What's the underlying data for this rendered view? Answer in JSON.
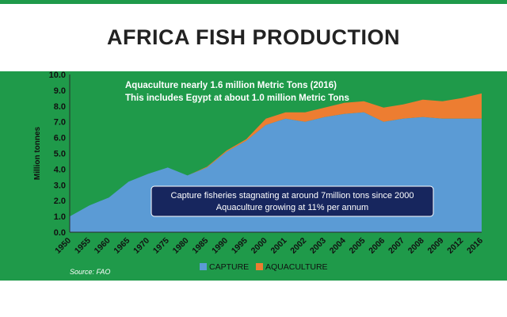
{
  "page": {
    "title": "AFRICA FISH PRODUCTION"
  },
  "colors": {
    "background_panel": "#1f9a4a",
    "capture": "#5b9bd5",
    "aquaculture": "#ed7d31",
    "note_box": "#17265e",
    "note_box_border": "#ffffff",
    "annotation_text": "#ffffff",
    "axis_text": "#111111"
  },
  "chart_data": {
    "type": "area",
    "stacked": true,
    "categories": [
      "1950",
      "1955",
      "1960",
      "1965",
      "1970",
      "1975",
      "1980",
      "1985",
      "1990",
      "1995",
      "2000",
      "2001",
      "2002",
      "2003",
      "2004",
      "2005",
      "2006",
      "2007",
      "2008",
      "2009",
      "2012",
      "2016"
    ],
    "series": [
      {
        "name": "CAPTURE",
        "color": "#5b9bd5",
        "values": [
          1.0,
          1.7,
          2.2,
          3.2,
          3.7,
          4.1,
          3.6,
          4.1,
          5.1,
          5.8,
          6.8,
          7.2,
          7.0,
          7.3,
          7.5,
          7.6,
          7.0,
          7.2,
          7.3,
          7.2,
          7.2,
          7.2
        ]
      },
      {
        "name": "AQUACULTURE",
        "color": "#ed7d31",
        "values": [
          0.0,
          0.0,
          0.0,
          0.0,
          0.0,
          0.0,
          0.0,
          0.05,
          0.08,
          0.1,
          0.4,
          0.4,
          0.6,
          0.6,
          0.7,
          0.7,
          0.9,
          0.9,
          1.1,
          1.1,
          1.3,
          1.6
        ]
      }
    ],
    "ylabel": "Million tonnes",
    "xlabel": "",
    "ylim": [
      0,
      10
    ],
    "yticks": [
      "0.0",
      "1.0",
      "2.0",
      "3.0",
      "4.0",
      "5.0",
      "6.0",
      "7.0",
      "8.0",
      "9.0",
      "10.0"
    ],
    "grid": false,
    "legend_position": "bottom-center",
    "annotations": {
      "top_line1": "Aquaculture nearly 1.6 million Metric Tons (2016)",
      "top_line2": "This includes Egypt at about 1.0 million Metric Tons",
      "box_line1": "Capture fisheries stagnating at around 7million tons since 2000",
      "box_line2": "Aquaculture growing at 11% per annum"
    },
    "source": "Source: FAO"
  }
}
